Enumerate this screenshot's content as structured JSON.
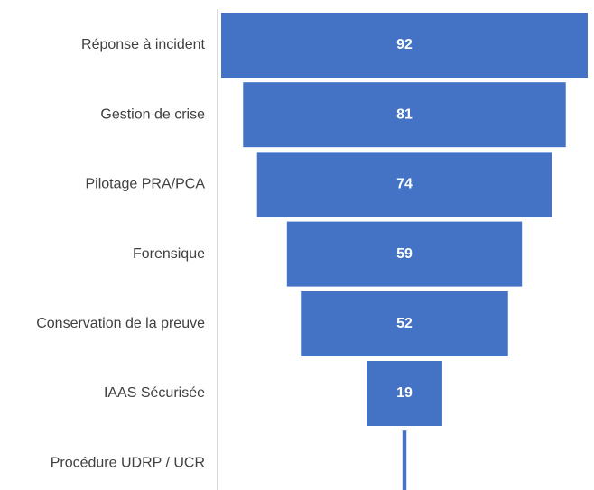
{
  "chart_data": {
    "type": "funnel",
    "categories": [
      "Réponse à incident",
      "Gestion de crise",
      "Pilotage PRA/PCA",
      "Forensique",
      "Conservation de la preuve",
      "IAAS Sécurisée",
      "Procédure UDRP / UCR"
    ],
    "values": [
      92,
      81,
      74,
      59,
      52,
      19,
      1
    ],
    "color": "#4472c4"
  }
}
